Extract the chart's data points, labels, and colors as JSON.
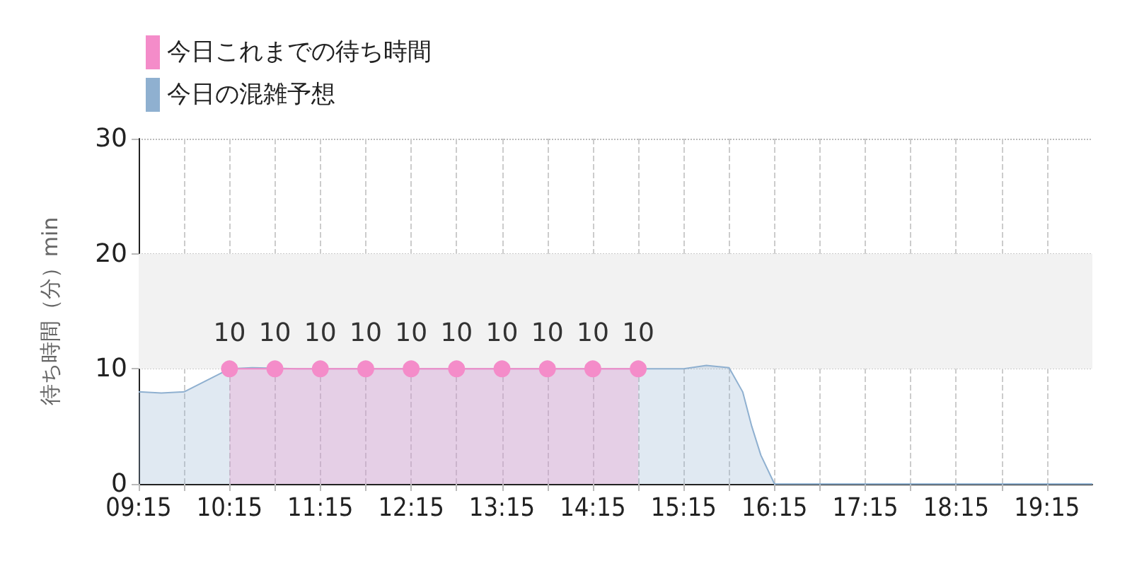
{
  "chart_data": {
    "type": "area",
    "ylabel": "待ち時間（分）min",
    "legend": "top left",
    "grid": true,
    "marker": "none",
    "xlim": [
      9.25,
      19.75
    ],
    "ylim": [
      0,
      30
    ],
    "yticks": [
      0,
      10,
      20,
      30
    ],
    "xticks": [
      {
        "value": 9.25,
        "label": "09:15"
      },
      {
        "value": 9.75,
        "label": null
      },
      {
        "value": 10.25,
        "label": "10:15"
      },
      {
        "value": 10.75,
        "label": null
      },
      {
        "value": 11.25,
        "label": "11:15"
      },
      {
        "value": 11.75,
        "label": null
      },
      {
        "value": 12.25,
        "label": "12:15"
      },
      {
        "value": 12.75,
        "label": null
      },
      {
        "value": 13.25,
        "label": "13:15"
      },
      {
        "value": 13.75,
        "label": null
      },
      {
        "value": 14.25,
        "label": "14:15"
      },
      {
        "value": 14.75,
        "label": null
      },
      {
        "value": 15.25,
        "label": "15:15"
      },
      {
        "value": 15.75,
        "label": null
      },
      {
        "value": 16.25,
        "label": "16:15"
      },
      {
        "value": 16.75,
        "label": null
      },
      {
        "value": 17.25,
        "label": "17:15"
      },
      {
        "value": 17.75,
        "label": null
      },
      {
        "value": 18.25,
        "label": "18:15"
      },
      {
        "value": 18.75,
        "label": null
      },
      {
        "value": 19.25,
        "label": "19:15"
      }
    ],
    "bands": [
      {
        "axis": "y",
        "from": 10,
        "to": 20,
        "color": "#f2f2f2"
      }
    ],
    "series": [
      {
        "name": "今日これまでの待ち時間",
        "color": "#f48cc9",
        "marker": "circle",
        "data_labels": true,
        "x": [
          10.25,
          10.75,
          11.25,
          11.75,
          12.25,
          12.75,
          13.25,
          13.75,
          14.25,
          14.75
        ],
        "values": [
          10,
          10,
          10,
          10,
          10,
          10,
          10,
          10,
          10,
          10
        ]
      },
      {
        "name": "今日の混雑予想",
        "color": "#8fb0d0",
        "x": [
          9.25,
          9.5,
          9.75,
          10,
          10.25,
          10.5,
          11,
          12,
          13,
          14,
          15,
          15.25,
          15.5,
          15.75,
          15.9,
          16,
          16.1,
          16.25,
          16.5,
          17,
          18,
          19,
          19.75
        ],
        "values": [
          8,
          7.9,
          8,
          9,
          10,
          10.1,
          10,
          10,
          10,
          10,
          10,
          10,
          10.3,
          10.1,
          8,
          5,
          2.5,
          0,
          0,
          0,
          0,
          0,
          0
        ]
      }
    ]
  }
}
